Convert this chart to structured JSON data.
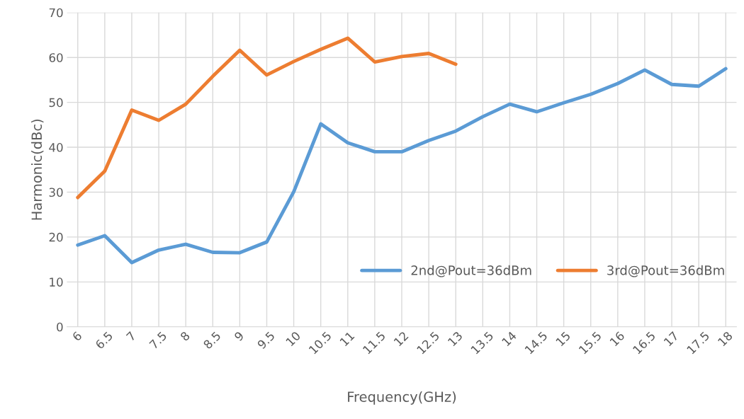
{
  "chart_data": {
    "type": "line",
    "xlabel": "Frequency(GHz)",
    "ylabel": "Harmonic(dBc)",
    "categories": [
      "6",
      "6.5",
      "7",
      "7.5",
      "8",
      "8.5",
      "9",
      "9.5",
      "10",
      "10.5",
      "11",
      "11.5",
      "12",
      "12.5",
      "13",
      "13.5",
      "14",
      "14.5",
      "15",
      "15.5",
      "16",
      "16.5",
      "17",
      "17.5",
      "18"
    ],
    "series": [
      {
        "name": "2nd@Pout=36dBm",
        "color": "#5b9bd5",
        "values": [
          18.2,
          20.3,
          14.3,
          17.1,
          18.4,
          16.6,
          16.5,
          18.9,
          30.1,
          45.2,
          41,
          39,
          39,
          41.5,
          43.6,
          46.8,
          49.6,
          47.9,
          49.9,
          51.8,
          54.2,
          57.2,
          54,
          53.6,
          57.5
        ]
      },
      {
        "name": "3rd@Pout=36dBm",
        "color": "#ed7d31",
        "values": [
          28.8,
          34.7,
          48.3,
          46,
          49.6,
          55.8,
          61.6,
          56.1,
          59.1,
          61.8,
          64.3,
          59,
          60.2,
          60.9,
          58.5,
          null,
          null,
          null,
          null,
          null,
          null,
          null,
          null,
          null,
          null
        ]
      }
    ],
    "ylim": [
      0,
      70
    ],
    "yticks": [
      0,
      10,
      20,
      30,
      40,
      50,
      60,
      70
    ],
    "grid": true,
    "legend": "lower right",
    "marker": "none",
    "line_style": "solid"
  }
}
